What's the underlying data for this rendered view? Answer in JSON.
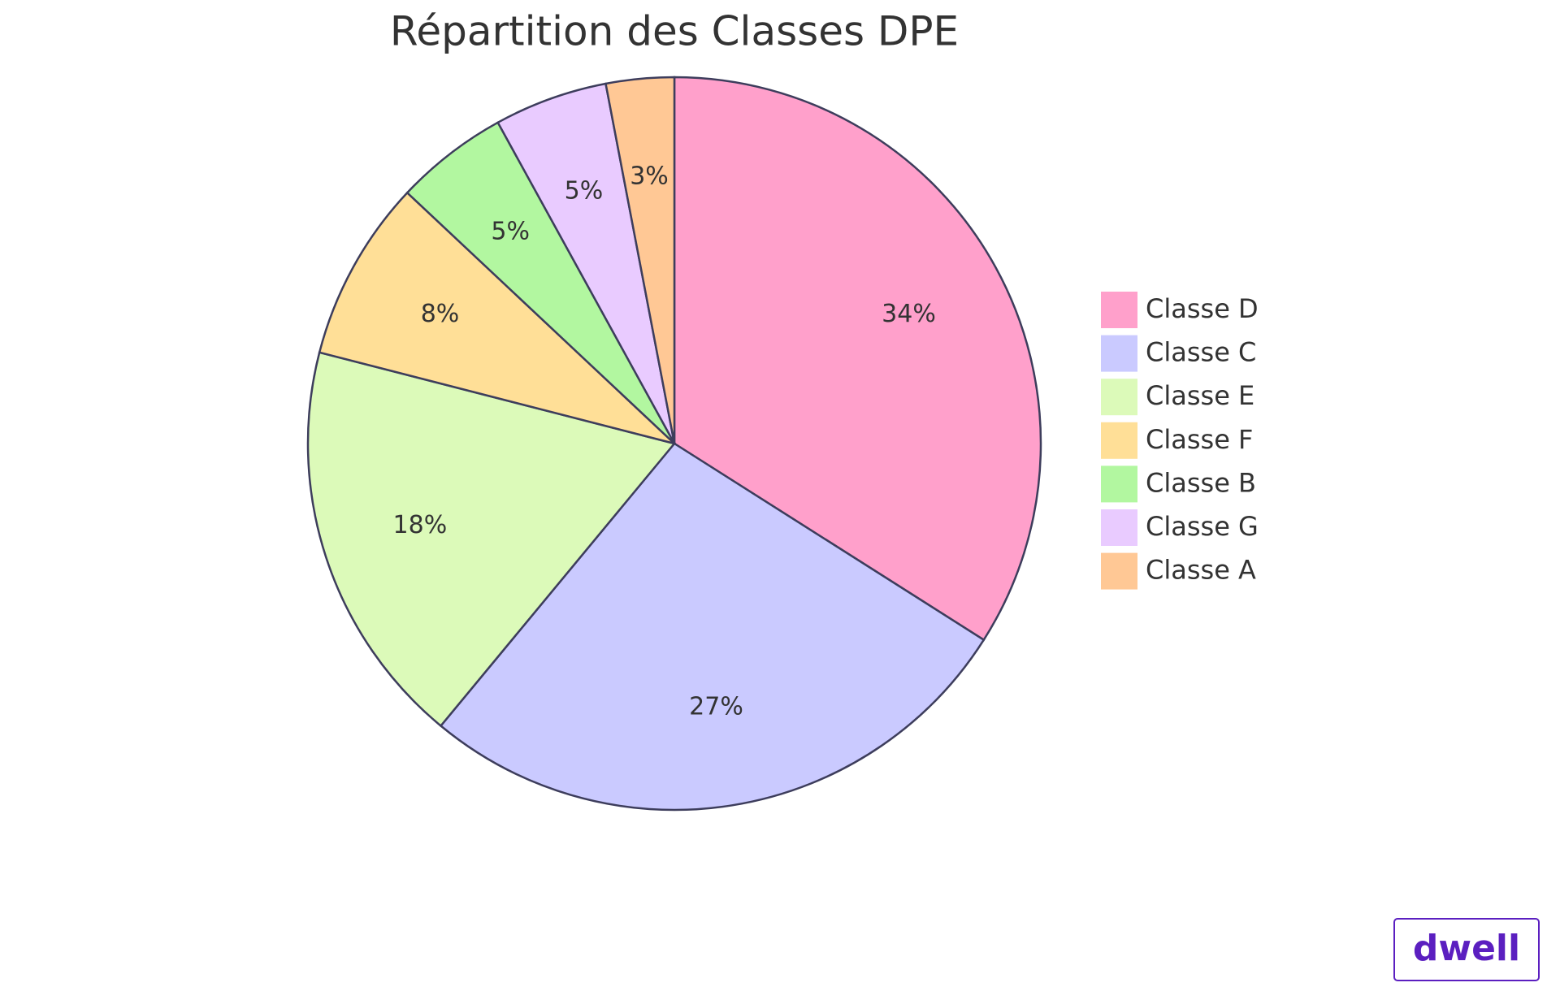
{
  "chart_data": {
    "type": "pie",
    "title": "Répartition des Classes DPE",
    "categories": [
      "Classe D",
      "Classe C",
      "Classe E",
      "Classe F",
      "Classe B",
      "Classe G",
      "Classe A"
    ],
    "values": [
      34,
      27,
      18,
      8,
      5,
      5,
      3
    ],
    "value_labels": [
      "34%",
      "27%",
      "18%",
      "8%",
      "5%",
      "5%",
      "3%"
    ],
    "colors": [
      "#ffa0cb",
      "#cacaff",
      "#dcfab9",
      "#ffdf97",
      "#b2f7a0",
      "#e9cbff",
      "#ffc895"
    ],
    "legend": "right"
  },
  "logo": "dwell"
}
